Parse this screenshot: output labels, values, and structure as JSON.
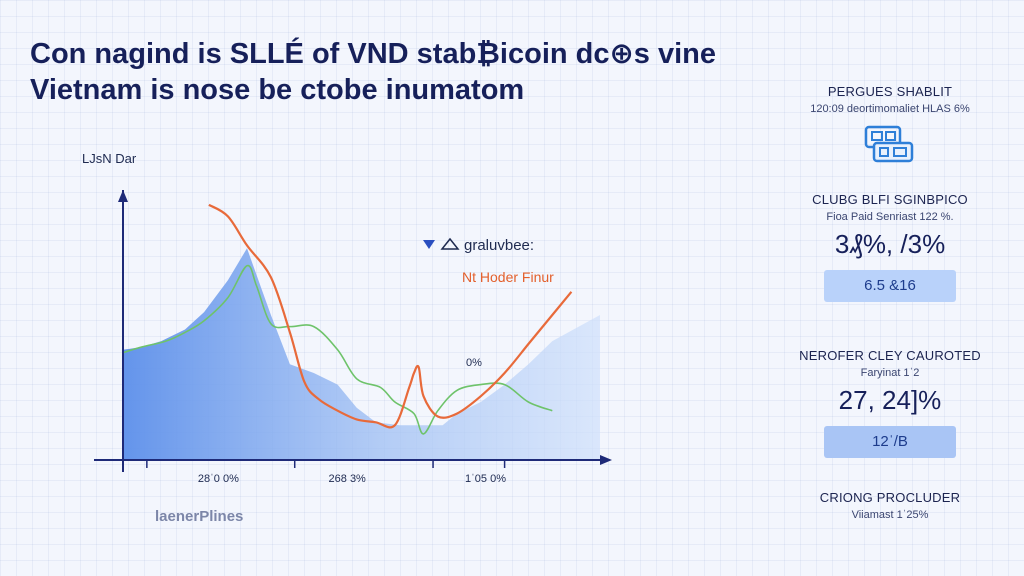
{
  "headline": {
    "line1": "Con nagind is SLLÉ of VND stab₿icoin dc⊕s vine",
    "line2": "Vietnam is nose be ctobe inumatom"
  },
  "chart_data": {
    "type": "area",
    "ylabel": "LJsN Dar",
    "x_tick_labels": [
      "28ˈ0 0%",
      "268 3%",
      "1ˈ05 0%"
    ],
    "annotation": "0%",
    "legend": {
      "entry1": "graluvbee:",
      "entry2": "Nt Hoder Finur"
    },
    "legend_icons": [
      "triangle-down-icon",
      "triangle-up-icon"
    ],
    "series": [
      {
        "kind": "area",
        "color": "#4a7fe6",
        "x": [
          0,
          4,
          8,
          13,
          17,
          22,
          26,
          31,
          35,
          40,
          45,
          49,
          53,
          58,
          63,
          67,
          70,
          75,
          80,
          85,
          90,
          100
        ],
        "y": [
          38,
          39,
          41,
          45,
          51,
          62,
          73,
          50,
          33,
          30,
          26,
          18,
          13,
          12,
          12,
          12,
          16,
          20,
          26,
          33,
          41,
          50
        ]
      },
      {
        "kind": "line",
        "color": "#6ec36a",
        "x": [
          0,
          4,
          9,
          13,
          17,
          22,
          26,
          28,
          31,
          35,
          40,
          45,
          49,
          54,
          57,
          61,
          63,
          66,
          70,
          75,
          80,
          85,
          90
        ],
        "y": [
          37,
          39,
          41,
          44,
          48,
          56,
          67,
          60,
          47,
          46,
          46,
          38,
          28,
          25,
          20,
          16,
          9,
          17,
          24,
          26,
          26,
          20,
          17
        ]
      },
      {
        "kind": "line",
        "color": "#e86a3a",
        "x": [
          18,
          22,
          26,
          31,
          35,
          38,
          41,
          45,
          49,
          53,
          57,
          60,
          61,
          62,
          63,
          66,
          70,
          75,
          80,
          85,
          90,
          94
        ],
        "y": [
          88,
          84,
          74,
          63,
          44,
          27,
          21,
          17,
          14,
          13,
          12,
          25,
          30,
          32,
          22,
          15,
          16,
          22,
          30,
          40,
          50,
          58
        ]
      }
    ]
  },
  "sidebar": {
    "panel1": {
      "title": "PERGUES SHABLIT",
      "subtitle": "120:09 deortimomaliet HLAS 6%",
      "icon": "payment-device-icon"
    },
    "panel2": {
      "title": "CLUBG BLFI SGINBPICO",
      "subtitle": "Fioa Paid Senriast 122 %.",
      "value": "3₰%, /3%",
      "pill": "6.5 &16"
    },
    "panel3": {
      "title": "NEROFER CLEY CAUROTED",
      "subtitle": "Faryinat 1ˈ2",
      "value": "27, 24]%",
      "pill": "12ˈ/B"
    },
    "panel4": {
      "title": "CRIONG PROCLUDER",
      "subtitle": "Viiamast 1ˈ25%"
    }
  },
  "footer": {
    "text": "laenerPlines"
  },
  "colors": {
    "accent": "#4a7fe6",
    "green_series": "#6ec36a",
    "orange_series": "#e86a3a",
    "axis": "#1e2a78"
  }
}
